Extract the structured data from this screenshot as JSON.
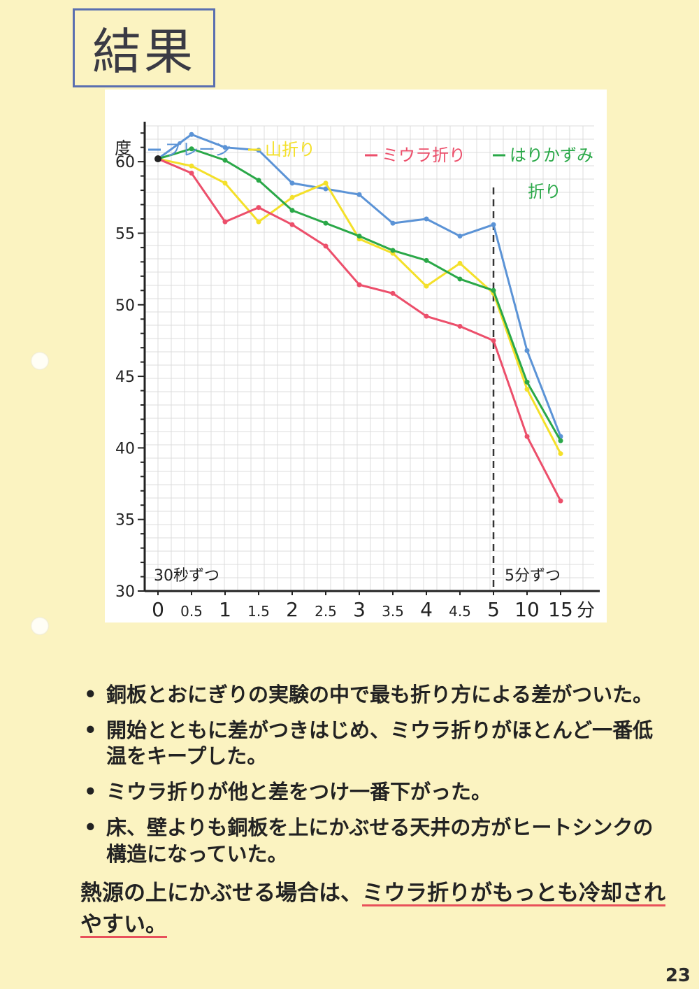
{
  "page_title": "結果",
  "page_number": "23",
  "chart_data": {
    "type": "line",
    "ylabel": "度",
    "xunit": "分",
    "ylim": [
      30,
      62.5
    ],
    "yticks": [
      "30",
      "35",
      "40",
      "45",
      "50",
      "55",
      "60"
    ],
    "categories": [
      "0",
      "0.5",
      "1",
      "1.5",
      "2",
      "2.5",
      "3",
      "3.5",
      "4",
      "4.5",
      "5",
      "10",
      "15"
    ],
    "series": [
      {
        "name": "プレーン",
        "color": "#5b93d6",
        "values": [
          60.2,
          61.9,
          61.0,
          60.8,
          58.5,
          58.1,
          57.7,
          55.7,
          56.0,
          54.8,
          55.6,
          46.8,
          40.8
        ]
      },
      {
        "name": "山折り",
        "color": "#f4e02a",
        "values": [
          60.2,
          59.7,
          58.5,
          55.8,
          57.5,
          58.5,
          54.6,
          53.6,
          51.3,
          52.9,
          50.8,
          44.1,
          39.6
        ]
      },
      {
        "name": "ミウラ折り",
        "color": "#ec4f6b",
        "values": [
          60.2,
          59.2,
          55.8,
          56.8,
          55.6,
          54.1,
          51.4,
          50.8,
          49.2,
          48.5,
          47.5,
          40.8,
          36.3
        ]
      },
      {
        "name": "はりかずみ折り",
        "color": "#2aa848",
        "values": [
          60.2,
          60.9,
          60.1,
          58.7,
          56.6,
          55.7,
          54.8,
          53.8,
          53.1,
          51.8,
          51.0,
          44.6,
          40.5
        ]
      }
    ],
    "legend_position": "top",
    "segment_labels": {
      "left": "30秒ずつ",
      "right": "5分ずつ"
    },
    "grid": true
  },
  "notes": [
    "銅板とおにぎりの実験の中で最も折り方による差がついた。",
    "開始とともに差がつきはじめ、ミウラ折りがほとんど一番低温をキープした。",
    "ミウラ折りが他と差をつけ一番下がった。",
    "床、壁よりも銅板を上にかぶせる天井の方がヒートシンクの構造になっていた。"
  ],
  "conclusion": {
    "before": "熱源の上にかぶせる場合は、",
    "highlight": "ミウラ折りがもっとも冷却されやすい。"
  }
}
